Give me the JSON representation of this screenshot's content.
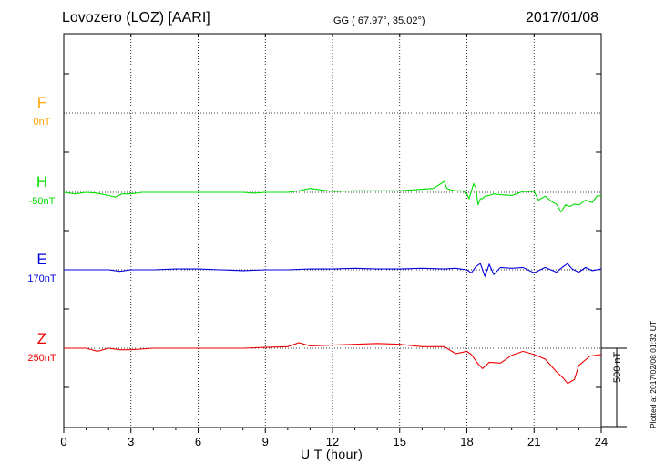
{
  "header": {
    "station": "Lovozero (LOZ)  [AARI]",
    "coords": "GG ( 67.97°,  35.02°)",
    "date": "2017/01/08"
  },
  "footer": {
    "plotted": "Plotted at 2017/02/08 01:32 UT"
  },
  "chart_data": {
    "type": "line",
    "xlabel": "U T (hour)",
    "xlim": [
      0,
      24
    ],
    "xticks": [
      0,
      3,
      6,
      9,
      12,
      15,
      18,
      21,
      24
    ],
    "xtick_labels": [
      "0",
      "3",
      "6",
      "9",
      "12",
      "15",
      "18",
      "21",
      "24"
    ],
    "scale_bar": {
      "label": "500 nT",
      "value_nT": 500
    },
    "series": [
      {
        "name": "F",
        "offset_label": "0nT",
        "color": "#ffa500",
        "x": [],
        "y": []
      },
      {
        "name": "H",
        "offset_label": "-50nT",
        "color": "#00e000",
        "x": [
          0,
          0.5,
          1,
          1.5,
          2,
          2.3,
          2.6,
          3,
          3.5,
          4,
          5,
          6,
          7,
          8,
          8.5,
          9,
          10,
          10.5,
          11,
          12,
          13,
          14,
          15,
          15.5,
          16,
          16.5,
          17,
          17.1,
          17.3,
          17.5,
          17.8,
          18,
          18.1,
          18.3,
          18.4,
          18.5,
          18.6,
          18.7,
          18.8,
          19,
          19.2,
          19.5,
          20,
          20.5,
          21,
          21.2,
          21.5,
          21.8,
          22,
          22.2,
          22.4,
          22.6,
          22.8,
          23,
          23.3,
          23.6,
          23.8,
          24
        ],
        "y": [
          0,
          -10,
          0,
          -5,
          -20,
          -30,
          -10,
          -10,
          0,
          0,
          0,
          0,
          0,
          0,
          -5,
          0,
          0,
          10,
          25,
          5,
          10,
          10,
          10,
          15,
          20,
          25,
          70,
          25,
          15,
          10,
          10,
          -10,
          -40,
          55,
          30,
          -80,
          -40,
          -40,
          -25,
          -20,
          -10,
          -15,
          -20,
          5,
          5,
          -50,
          -25,
          -60,
          -75,
          -125,
          -80,
          -90,
          -75,
          -80,
          -50,
          -65,
          -25,
          -20
        ],
        "visible_offset_nT": -50
      },
      {
        "name": "E",
        "offset_label": "170nT",
        "color": "#0000dd",
        "x": [
          0,
          1,
          2,
          2.5,
          3,
          4,
          5,
          6,
          7,
          8,
          9,
          10,
          11,
          12,
          13,
          14,
          15,
          16,
          17,
          17.5,
          18,
          18.2,
          18.4,
          18.6,
          18.8,
          19,
          19.2,
          19.5,
          20,
          20.5,
          21,
          21.5,
          22,
          22.3,
          22.5,
          22.7,
          23,
          23.3,
          23.6,
          24
        ],
        "y": [
          0,
          0,
          0,
          -10,
          0,
          0,
          5,
          5,
          0,
          -5,
          0,
          0,
          5,
          5,
          10,
          5,
          5,
          10,
          5,
          10,
          0,
          -20,
          20,
          40,
          -40,
          35,
          -30,
          15,
          10,
          15,
          -20,
          15,
          -15,
          20,
          40,
          5,
          -15,
          15,
          -5,
          5
        ],
        "visible_offset_nT": 170
      },
      {
        "name": "Z",
        "offset_label": "250nT",
        "color": "#ee0000",
        "x": [
          0,
          1,
          1.5,
          2,
          2.5,
          3,
          4,
          5,
          6,
          7,
          8,
          9,
          10,
          10.5,
          11,
          12,
          13,
          14,
          15,
          16,
          17,
          17.5,
          18,
          18.2,
          18.5,
          18.7,
          19,
          19.5,
          20,
          20.5,
          21,
          21.5,
          22,
          22.3,
          22.5,
          22.8,
          23,
          23.5,
          24
        ],
        "y": [
          0,
          0,
          -20,
          0,
          -10,
          -10,
          0,
          0,
          0,
          0,
          0,
          5,
          10,
          35,
          15,
          20,
          25,
          30,
          25,
          10,
          10,
          -35,
          -20,
          -40,
          -100,
          -130,
          -90,
          -95,
          -45,
          -20,
          -40,
          -70,
          -150,
          -190,
          -225,
          -200,
          -110,
          -50,
          -40
        ],
        "visible_offset_nT": 250
      }
    ]
  }
}
